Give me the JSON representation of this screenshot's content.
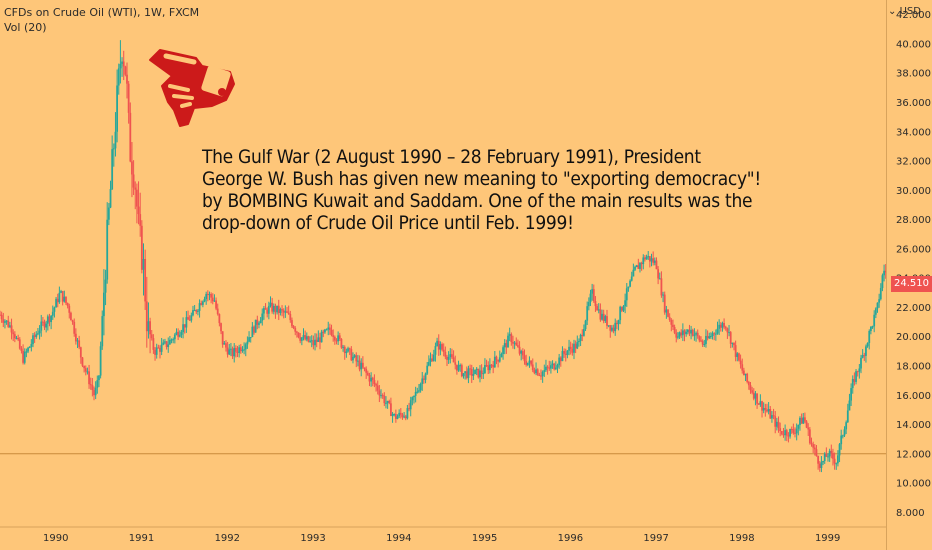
{
  "header": {
    "title": "CFDs on Crude Oil (WTI), 1W, FXCM",
    "indicator": "Vol (20)",
    "currency": "USD",
    "currency_icon": "chevron-down-icon"
  },
  "annotation": {
    "lines": [
      "The Gulf War (2 August 1990 – 28 February 1991), President",
      "George W. Bush has given new meaning to \"exporting democracy\"!",
      "by BOMBING Kuwait and Saddam. One of the main results was the",
      "drop-down of Crude Oil Price until Feb. 1999!"
    ],
    "icon": "pointing-hand-icon",
    "icon_color": "#cc1a1a"
  },
  "last_price": {
    "label": "24.510",
    "color": "#ef5350"
  },
  "colors": {
    "up": "#26a69a",
    "down": "#ef5350",
    "background": "#fec679",
    "hline": "#c98a3a"
  },
  "chart_data": {
    "type": "candlestick",
    "interval": "1W",
    "x_ticks": [
      "1990",
      "1991",
      "1992",
      "1993",
      "1994",
      "1995",
      "1996",
      "1997",
      "1998",
      "1999"
    ],
    "y_ticks": [
      "42.000",
      "40.000",
      "38.000",
      "36.000",
      "34.000",
      "32.000",
      "30.000",
      "28.000",
      "26.000",
      "24.000",
      "22.000",
      "20.000",
      "18.000",
      "16.000",
      "14.000",
      "12.000",
      "10.000",
      "8.000"
    ],
    "ylim": [
      7,
      43
    ],
    "xlim": [
      1989.35,
      1999.68
    ],
    "horizontal_line": 12.0,
    "anchors": [
      [
        1989.35,
        21.5
      ],
      [
        1989.5,
        20.5
      ],
      [
        1989.62,
        18.5
      ],
      [
        1989.8,
        20.5
      ],
      [
        1989.95,
        21.5
      ],
      [
        1990.05,
        23.0
      ],
      [
        1990.15,
        22.0
      ],
      [
        1990.3,
        18.5
      ],
      [
        1990.45,
        16.0
      ],
      [
        1990.5,
        17.0
      ],
      [
        1990.58,
        25.0
      ],
      [
        1990.65,
        31.0
      ],
      [
        1990.7,
        35.0
      ],
      [
        1990.77,
        40.0
      ],
      [
        1990.82,
        38.0
      ],
      [
        1990.86,
        33.0
      ],
      [
        1990.92,
        31.0
      ],
      [
        1990.97,
        27.0
      ],
      [
        1991.02,
        25.0
      ],
      [
        1991.07,
        20.5
      ],
      [
        1991.15,
        19.0
      ],
      [
        1991.3,
        19.5
      ],
      [
        1991.45,
        20.5
      ],
      [
        1991.6,
        21.5
      ],
      [
        1991.75,
        23.0
      ],
      [
        1991.85,
        22.5
      ],
      [
        1991.95,
        19.5
      ],
      [
        1992.05,
        18.8
      ],
      [
        1992.2,
        19.5
      ],
      [
        1992.4,
        21.5
      ],
      [
        1992.5,
        22.0
      ],
      [
        1992.7,
        21.5
      ],
      [
        1992.85,
        20.0
      ],
      [
        1993.0,
        19.5
      ],
      [
        1993.2,
        20.5
      ],
      [
        1993.4,
        19.0
      ],
      [
        1993.55,
        18.0
      ],
      [
        1993.75,
        16.5
      ],
      [
        1993.95,
        14.5
      ],
      [
        1994.1,
        14.8
      ],
      [
        1994.3,
        17.5
      ],
      [
        1994.45,
        19.5
      ],
      [
        1994.6,
        18.5
      ],
      [
        1994.75,
        17.5
      ],
      [
        1994.95,
        17.5
      ],
      [
        1995.15,
        18.5
      ],
      [
        1995.3,
        20.0
      ],
      [
        1995.45,
        18.5
      ],
      [
        1995.65,
        17.5
      ],
      [
        1995.8,
        18.0
      ],
      [
        1995.95,
        19.0
      ],
      [
        1996.1,
        19.5
      ],
      [
        1996.25,
        23.0
      ],
      [
        1996.35,
        21.5
      ],
      [
        1996.5,
        20.5
      ],
      [
        1996.6,
        22.0
      ],
      [
        1996.75,
        24.5
      ],
      [
        1996.88,
        25.5
      ],
      [
        1997.0,
        25.0
      ],
      [
        1997.1,
        22.0
      ],
      [
        1997.25,
        20.0
      ],
      [
        1997.4,
        20.5
      ],
      [
        1997.55,
        19.5
      ],
      [
        1997.7,
        20.5
      ],
      [
        1997.8,
        21.0
      ],
      [
        1997.95,
        18.5
      ],
      [
        1998.05,
        17.0
      ],
      [
        1998.2,
        15.5
      ],
      [
        1998.35,
        14.5
      ],
      [
        1998.45,
        13.5
      ],
      [
        1998.6,
        13.5
      ],
      [
        1998.72,
        14.5
      ],
      [
        1998.82,
        12.5
      ],
      [
        1998.92,
        11.2
      ],
      [
        1999.0,
        12.0
      ],
      [
        1999.1,
        11.5
      ],
      [
        1999.2,
        14.0
      ],
      [
        1999.3,
        17.0
      ],
      [
        1999.4,
        18.5
      ],
      [
        1999.5,
        20.5
      ],
      [
        1999.58,
        22.0
      ],
      [
        1999.65,
        24.5
      ]
    ]
  }
}
